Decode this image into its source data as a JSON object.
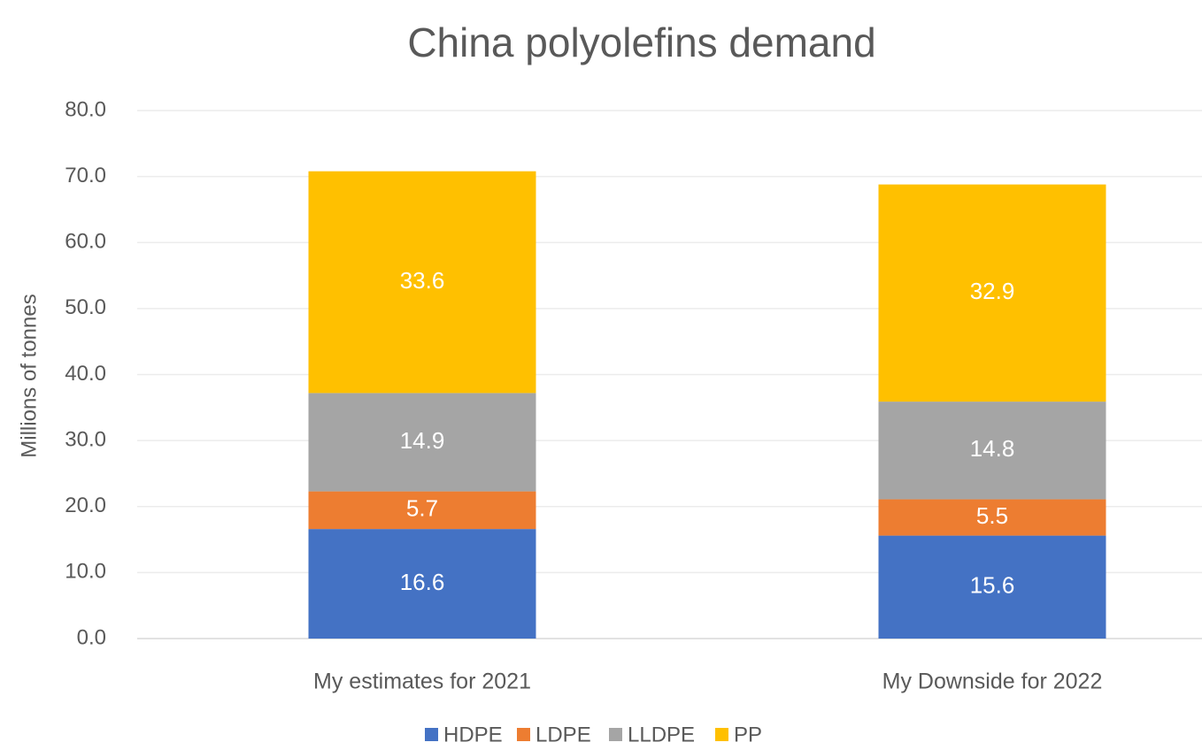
{
  "chart_data": {
    "type": "stacked_bar",
    "title": "China polyolefins demand",
    "y_label": "Millions of tonnes",
    "categories": [
      "My estimates for 2021",
      "My Downside for 2022"
    ],
    "series": [
      {
        "name": "HDPE",
        "color": "#4472c4",
        "values": [
          16.6,
          15.6
        ]
      },
      {
        "name": "LDPE",
        "color": "#ed7d31",
        "values": [
          5.7,
          5.5
        ]
      },
      {
        "name": "LLDPE",
        "color": "#a5a5a5",
        "values": [
          14.9,
          14.8
        ]
      },
      {
        "name": "PP",
        "color": "#ffc000",
        "values": [
          33.6,
          32.9
        ]
      }
    ],
    "ylim": [
      0,
      80
    ],
    "yticks": [
      {
        "value": 0,
        "label": "0.0"
      },
      {
        "value": 10,
        "label": "10.0"
      },
      {
        "value": 20,
        "label": "20.0"
      },
      {
        "value": 30,
        "label": "30.0"
      },
      {
        "value": 40,
        "label": "40.0"
      },
      {
        "value": 50,
        "label": "50.0"
      },
      {
        "value": 60,
        "label": "60.0"
      },
      {
        "value": 70,
        "label": "70.0"
      },
      {
        "value": 80,
        "label": "80.0"
      }
    ],
    "grid": true,
    "legend": "bottom"
  }
}
